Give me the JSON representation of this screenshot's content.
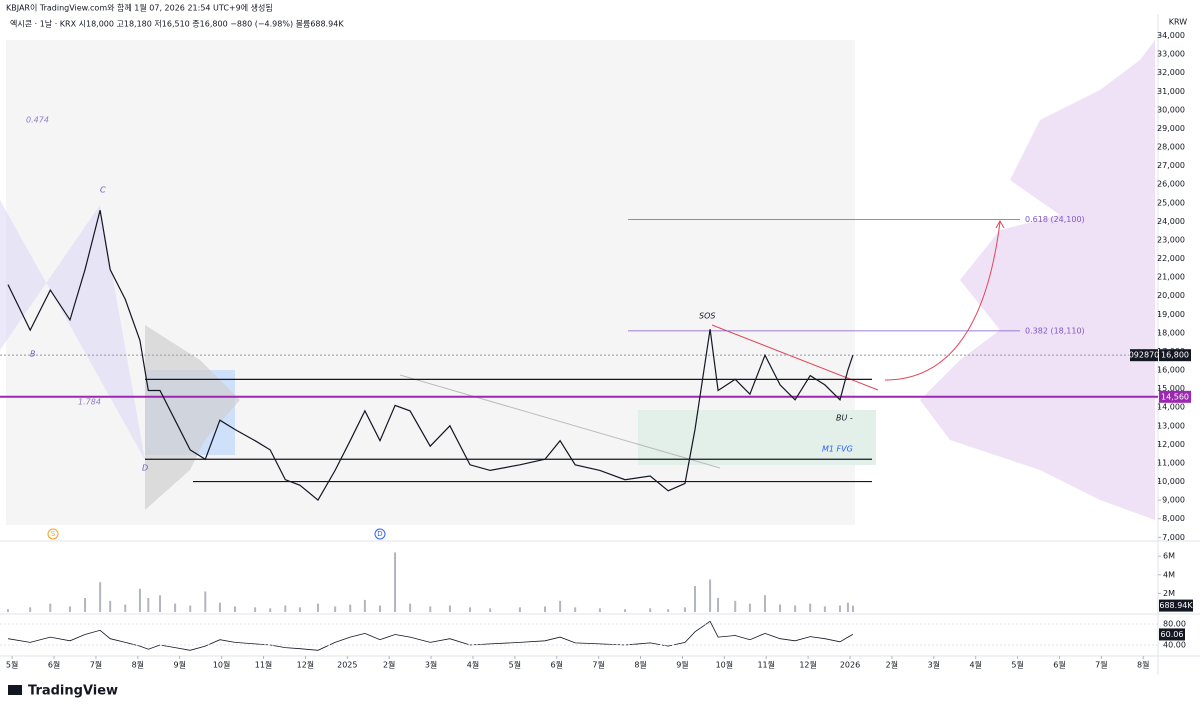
{
  "header": {
    "credit": "KBJAR이 TradingView.com와 함께 1월 07, 2026 21:54 UTC+9에 생성됨",
    "symbol_line": "엑시콘 · 1날 · KRX  시18,000  고18,180  저16,510  종16,800  −880 (−4.98%)  볼륨688.94K"
  },
  "chart_data": {
    "type": "line",
    "currency": "KRW",
    "color": "#131722",
    "x": [
      -0.1,
      0.43,
      0.91,
      1.38,
      1.74,
      2.1,
      2.34,
      2.7,
      3.05,
      3.25,
      3.53,
      3.89,
      4.25,
      4.61,
      4.96,
      5.32,
      5.8,
      6.16,
      6.52,
      6.87,
      7.3,
      7.71,
      8.07,
      8.42,
      8.78,
      9.14,
      9.5,
      9.98,
      10.45,
      10.93,
      11.41,
      12.12,
      12.72,
      13.08,
      13.44,
      14.03,
      14.63,
      15.23,
      15.66,
      16.06,
      16.3,
      16.66,
      16.85,
      17.26,
      17.61,
      17.97,
      18.33,
      18.69,
      19.05,
      19.4,
      19.76,
      19.95,
      20.07
    ],
    "values": [
      20600,
      18150,
      20300,
      18700,
      21400,
      24600,
      21400,
      19800,
      17600,
      14900,
      14900,
      13300,
      11700,
      11200,
      13300,
      12800,
      12200,
      11700,
      10100,
      9800,
      9000,
      10600,
      12200,
      13800,
      12200,
      14100,
      13800,
      11900,
      13000,
      10900,
      10600,
      10900,
      11200,
      12200,
      10900,
      10600,
      10100,
      10300,
      9500,
      9900,
      12800,
      18200,
      14900,
      15500,
      14700,
      16800,
      15200,
      14400,
      15700,
      15200,
      14400,
      16000,
      16800
    ],
    "xlim": [
      -0.29,
      27.28
    ],
    "xticks": [
      {
        "value": 0,
        "label": "5월"
      },
      {
        "value": 1,
        "label": "6월"
      },
      {
        "value": 2,
        "label": "7월"
      },
      {
        "value": 3,
        "label": "8월"
      },
      {
        "value": 4,
        "label": "9월"
      },
      {
        "value": 5,
        "label": "10월"
      },
      {
        "value": 6,
        "label": "11월"
      },
      {
        "value": 7,
        "label": "12월"
      },
      {
        "value": 8,
        "label": "2025"
      },
      {
        "value": 9,
        "label": "2월"
      },
      {
        "value": 10,
        "label": "3월"
      },
      {
        "value": 11,
        "label": "4월"
      },
      {
        "value": 12,
        "label": "5월"
      },
      {
        "value": 13,
        "label": "6월"
      },
      {
        "value": 14,
        "label": "7월"
      },
      {
        "value": 15,
        "label": "8월"
      },
      {
        "value": 16,
        "label": "9월"
      },
      {
        "value": 17,
        "label": "10월"
      },
      {
        "value": 18,
        "label": "11월"
      },
      {
        "value": 19,
        "label": "12월"
      },
      {
        "value": 20,
        "label": "2026"
      },
      {
        "value": 21,
        "label": "2월"
      },
      {
        "value": 22,
        "label": "3월"
      },
      {
        "value": 23,
        "label": "4월"
      },
      {
        "value": 24,
        "label": "5월"
      },
      {
        "value": 25,
        "label": "6월"
      },
      {
        "value": 26,
        "label": "7월"
      },
      {
        "value": 27,
        "label": "8월"
      }
    ],
    "ylim": [
      6800,
      34300
    ],
    "yticks": [
      {
        "value": 7000,
        "label": "7,000"
      },
      {
        "value": 8000,
        "label": "8,000"
      },
      {
        "value": 9000,
        "label": "9,000"
      },
      {
        "value": 10000,
        "label": "10,000"
      },
      {
        "value": 11000,
        "label": "11,000"
      },
      {
        "value": 12000,
        "label": "12,000"
      },
      {
        "value": 13000,
        "label": "13,000"
      },
      {
        "value": 14000,
        "label": "14,000"
      },
      {
        "value": 15000,
        "label": "15,000"
      },
      {
        "value": 16000,
        "label": "16,000"
      },
      {
        "value": 17000,
        "label": "17,000"
      },
      {
        "value": 18000,
        "label": "18,000"
      },
      {
        "value": 19000,
        "label": "19,000"
      },
      {
        "value": 20000,
        "label": "20,000"
      },
      {
        "value": 21000,
        "label": "21,000"
      },
      {
        "value": 22000,
        "label": "22,000"
      },
      {
        "value": 23000,
        "label": "23,000"
      },
      {
        "value": 24000,
        "label": "24,000"
      },
      {
        "value": 25000,
        "label": "25,000"
      },
      {
        "value": 26000,
        "label": "26,000"
      },
      {
        "value": 27000,
        "label": "27,000"
      },
      {
        "value": 28000,
        "label": "28,000"
      },
      {
        "value": 29000,
        "label": "29,000"
      },
      {
        "value": 30000,
        "label": "30,000"
      },
      {
        "value": 31000,
        "label": "31,000"
      },
      {
        "value": 32000,
        "label": "32,000"
      },
      {
        "value": 33000,
        "label": "33,000"
      },
      {
        "value": 34000,
        "label": "34,000"
      }
    ],
    "levels": [
      {
        "value": 15500,
        "color": "#131722"
      },
      {
        "value": 11200,
        "color": "#131722"
      },
      {
        "value": 10000,
        "color": "#131722"
      },
      {
        "value": 14560,
        "color": "#9c27b0",
        "label": "14,560"
      }
    ],
    "fib_levels": [
      {
        "value": 24100,
        "label": "0.618 (24,100)"
      },
      {
        "value": 18110,
        "label": "0.382 (18,110)"
      }
    ],
    "last_price": {
      "value": 16800,
      "label": "16,800"
    },
    "symbol_code": "092870",
    "annotations": [
      "0.474",
      "C",
      "B",
      "D",
      "1.784",
      "SOS",
      "BU -",
      "M1 FVG"
    ],
    "event_markers": [
      "S",
      "D"
    ],
    "volume": {
      "color": "#b2b5be",
      "values": [
        300000,
        500000,
        900000,
        600000,
        1500000,
        3200000,
        1200000,
        800000,
        2500000,
        1500000,
        1800000,
        900000,
        700000,
        2200000,
        1000000,
        600000,
        500000,
        400000,
        700000,
        500000,
        900000,
        600000,
        800000,
        1300000,
        700000,
        6400000,
        900000,
        600000,
        700000,
        500000,
        400000,
        500000,
        600000,
        1200000,
        500000,
        400000,
        300000,
        400000,
        300000,
        500000,
        2800000,
        3500000,
        1500000,
        1200000,
        900000,
        1800000,
        800000,
        700000,
        900000,
        600000,
        700000,
        1000000,
        688940
      ],
      "ylim": [
        0,
        7200000
      ],
      "yticks": [
        {
          "value": 2000000,
          "label": "2M"
        },
        {
          "value": 4000000,
          "label": "4M"
        },
        {
          "value": 6000000,
          "label": "6M"
        }
      ],
      "last": {
        "value": 688940,
        "label": "688.94K"
      }
    },
    "rsi": {
      "color": "#131722",
      "values": [
        52,
        45,
        55,
        48,
        60,
        68,
        52,
        45,
        38,
        32,
        40,
        35,
        30,
        38,
        50,
        45,
        42,
        40,
        35,
        33,
        30,
        45,
        55,
        62,
        50,
        60,
        55,
        45,
        52,
        40,
        42,
        45,
        48,
        55,
        44,
        42,
        40,
        44,
        38,
        45,
        65,
        85,
        55,
        58,
        50,
        62,
        52,
        48,
        56,
        52,
        46,
        55,
        60.06
      ],
      "ylim": [
        21,
        97
      ],
      "yticks": [
        {
          "value": 40,
          "label": "40.00"
        },
        {
          "value": 80,
          "label": "80.00"
        }
      ],
      "last": {
        "value": 60.06,
        "label": "60.06"
      }
    }
  },
  "branding": "TradingView"
}
